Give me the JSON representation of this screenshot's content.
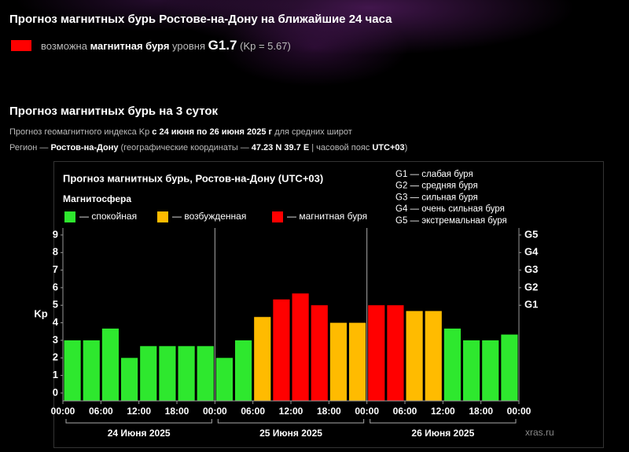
{
  "header": {
    "title": "Прогноз магнитных бурь Ростове-на-Дону на ближайшие 24 часа",
    "alert": {
      "color": "#ff0000",
      "prefix": "возможна",
      "bold": "магнитная буря",
      "mid": "уровня",
      "level": "G1.7",
      "kp": "(Kp = 5.67)"
    }
  },
  "forecast": {
    "title": "Прогноз магнитных бурь на 3 суток",
    "line1": [
      "Прогноз геомагнитного индекса Kp",
      "с 24 июня по 26 июня 2025 г",
      "для средних широт"
    ],
    "line2": [
      "Регион —",
      "Ростов-на-Дону",
      "(географические координаты —",
      "47.23 N 39.7 E",
      "| часовой пояс",
      "UTC+03",
      ")"
    ]
  },
  "chart_data": {
    "type": "bar",
    "title": "Прогноз магнитных бурь, Ростов-на-Дону (UTC+03)",
    "legend_title": "Магнитосфера",
    "legend": [
      {
        "label": "— спокойная",
        "color": "#2ee82e"
      },
      {
        "label": "— возбужденная",
        "color": "#ffbb00"
      },
      {
        "label": "— магнитная буря",
        "color": "#ff0000"
      }
    ],
    "g_scale": [
      "G1 — слабая буря",
      "G2 — средняя буря",
      "G3 — сильная буря",
      "G4 — очень сильная буря",
      "G5 — экстремальная буря"
    ],
    "ylabel": "Kp",
    "values": [
      3.0,
      3.0,
      3.67,
      2.0,
      2.67,
      2.67,
      2.67,
      2.67,
      2.0,
      3.0,
      4.33,
      5.33,
      5.67,
      5.0,
      4.0,
      4.0,
      5.0,
      5.0,
      4.67,
      4.67,
      3.67,
      3.0,
      3.0,
      3.33
    ],
    "colors": [
      "#2ee82e",
      "#2ee82e",
      "#2ee82e",
      "#2ee82e",
      "#2ee82e",
      "#2ee82e",
      "#2ee82e",
      "#2ee82e",
      "#2ee82e",
      "#2ee82e",
      "#ffbb00",
      "#ff0000",
      "#ff0000",
      "#ff0000",
      "#ffbb00",
      "#ffbb00",
      "#ff0000",
      "#ff0000",
      "#ffbb00",
      "#ffbb00",
      "#2ee82e",
      "#2ee82e",
      "#2ee82e",
      "#2ee82e"
    ],
    "ylim": [
      -0.45,
      9.4
    ],
    "yticks": [
      0,
      1,
      2,
      3,
      4,
      5,
      6,
      7,
      8,
      9
    ],
    "y2lim": [
      -0.45,
      9.4
    ],
    "y2ticks": [
      {
        "value": 5,
        "label": "G1"
      },
      {
        "value": 6,
        "label": "G2"
      },
      {
        "value": 7,
        "label": "G3"
      },
      {
        "value": 8,
        "label": "G4"
      },
      {
        "value": 9,
        "label": "G5"
      }
    ],
    "xlim": [
      0,
      72
    ],
    "xticks": [
      {
        "value": 0,
        "label": "00:00"
      },
      {
        "value": 6,
        "label": "06:00"
      },
      {
        "value": 12,
        "label": "12:00"
      },
      {
        "value": 18,
        "label": "18:00"
      },
      {
        "value": 24,
        "label": "00:00"
      },
      {
        "value": 30,
        "label": "06:00"
      },
      {
        "value": 36,
        "label": "12:00"
      },
      {
        "value": 42,
        "label": "18:00"
      },
      {
        "value": 48,
        "label": "00:00"
      },
      {
        "value": 54,
        "label": "06:00"
      },
      {
        "value": 60,
        "label": "12:00"
      },
      {
        "value": 66,
        "label": "18:00"
      },
      {
        "value": 72,
        "label": "00:00"
      }
    ],
    "days": [
      "24 Июня 2025",
      "25 Июня 2025",
      "26 Июня 2025"
    ],
    "watermark": "xras.ru"
  }
}
